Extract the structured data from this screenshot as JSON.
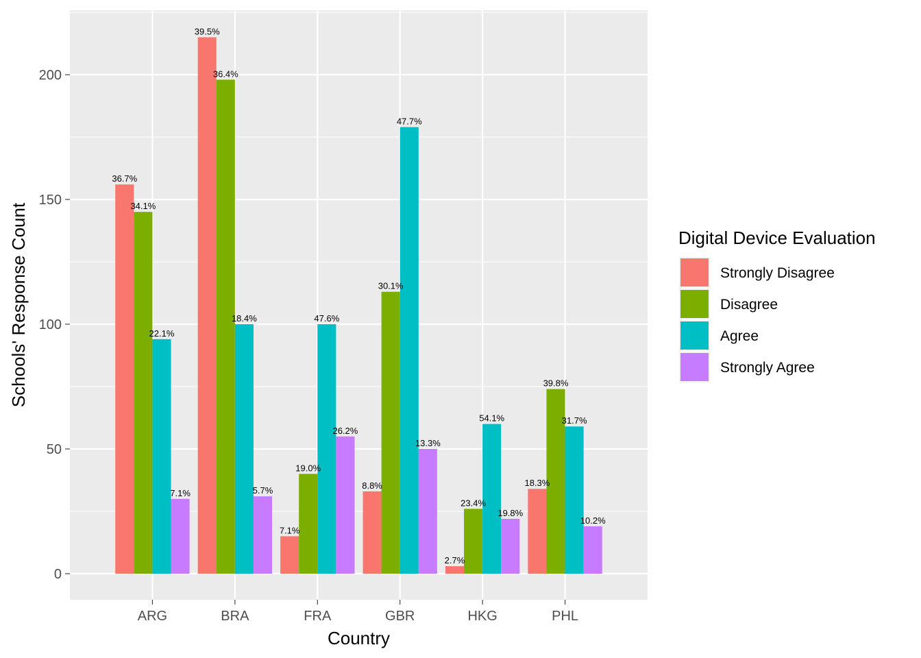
{
  "chart_data": {
    "type": "bar",
    "xlabel": "Country",
    "ylabel": "Schools' Response Count",
    "categories": [
      "ARG",
      "BRA",
      "FRA",
      "GBR",
      "HKG",
      "PHL"
    ],
    "ylim": [
      -10,
      225
    ],
    "yticks": [
      0,
      50,
      100,
      150,
      200
    ],
    "grid": true,
    "legend": {
      "title": "Digital Device Evaluation",
      "position": "right"
    },
    "series": [
      {
        "name": "Strongly Disagree",
        "color": "#F8766D",
        "values": [
          156,
          215,
          15,
          33,
          3,
          34
        ],
        "labels": [
          "36.7%",
          "39.5%",
          "7.1%",
          "8.8%",
          "2.7%",
          "18.3%"
        ]
      },
      {
        "name": "Disagree",
        "color": "#7CAE00",
        "values": [
          145,
          198,
          40,
          113,
          26,
          74
        ],
        "labels": [
          "34.1%",
          "36.4%",
          "19.0%",
          "30.1%",
          "23.4%",
          "39.8%"
        ]
      },
      {
        "name": "Agree",
        "color": "#00BFC4",
        "values": [
          94,
          100,
          100,
          179,
          60,
          59
        ],
        "labels": [
          "22.1%",
          "18.4%",
          "47.6%",
          "47.7%",
          "54.1%",
          "31.7%"
        ]
      },
      {
        "name": "Strongly Agree",
        "color": "#C77CFF",
        "values": [
          30,
          31,
          55,
          50,
          22,
          19
        ],
        "labels": [
          "7.1%",
          "5.7%",
          "26.2%",
          "13.3%",
          "19.8%",
          "10.2%"
        ]
      }
    ]
  }
}
